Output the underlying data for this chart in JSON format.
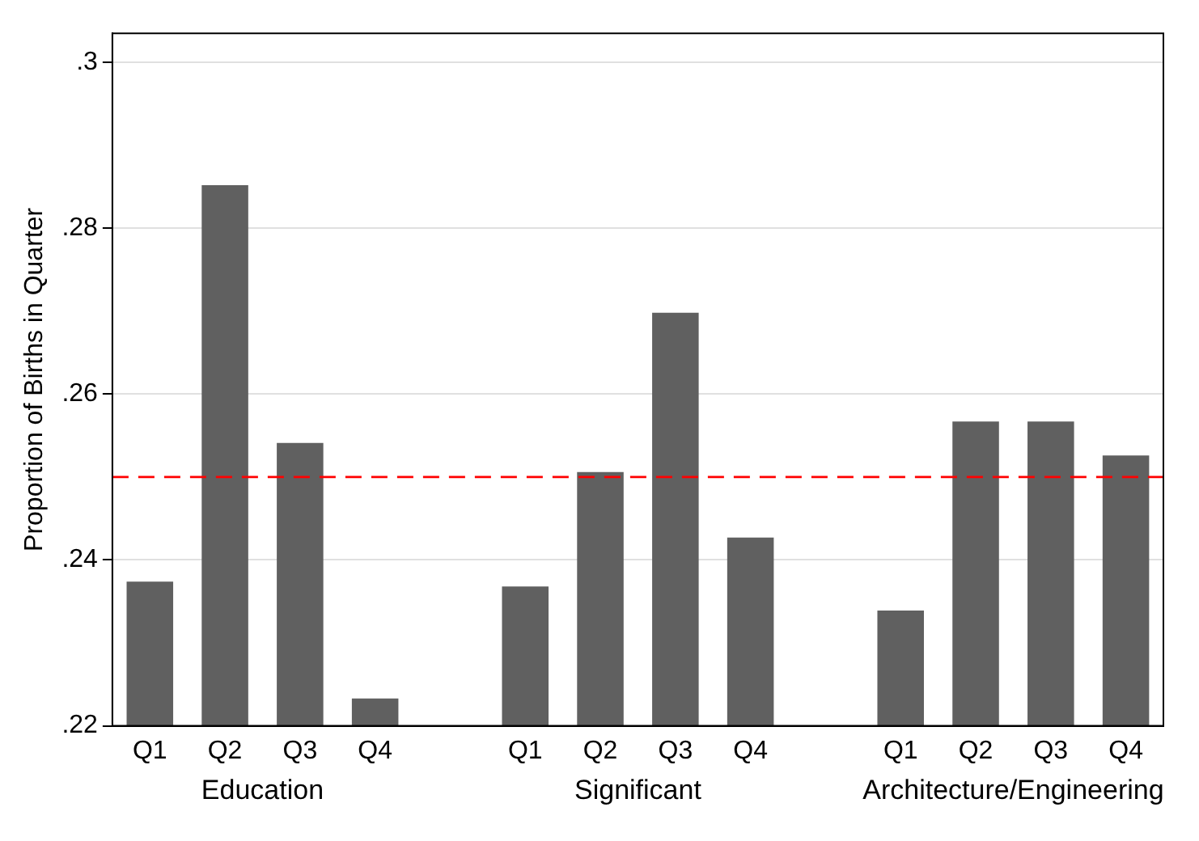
{
  "chart_data": {
    "type": "bar",
    "ylabel": "Proportion of Births in Quarter",
    "categories": [
      "Q1",
      "Q2",
      "Q3",
      "Q4",
      null,
      "Q1",
      "Q2",
      "Q3",
      "Q4",
      null,
      "Q1",
      "Q2",
      "Q3",
      "Q4"
    ],
    "values": [
      0.2374,
      0.2852,
      0.2541,
      0.2233,
      null,
      0.2368,
      0.2506,
      0.2698,
      0.2427,
      null,
      0.2339,
      0.2567,
      0.2567,
      0.2526
    ],
    "color": "#606060",
    "ylim": [
      0.22,
      0.3035
    ],
    "yticks": [
      {
        "value": 0.22,
        "label": ".22"
      },
      {
        "value": 0.24,
        "label": ".24"
      },
      {
        "value": 0.26,
        "label": ".26"
      },
      {
        "value": 0.28,
        "label": ".28"
      },
      {
        "value": 0.3,
        "label": ".3"
      }
    ],
    "grid": "y",
    "ref_lines": [
      {
        "axis": "y",
        "value": 0.25,
        "color": "#ff0000",
        "line_style": "dashed"
      }
    ],
    "annotations": [
      "Education",
      "Significant",
      "Architecture/Engineering"
    ]
  }
}
